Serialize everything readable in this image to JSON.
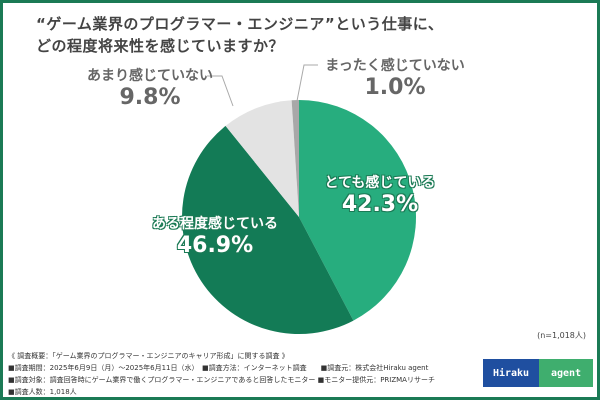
{
  "title_line1": "“ゲーム業界のプログラマー・エンジニア”という仕事に、",
  "title_line2": "どの程度将来性を感じていますか？",
  "chart_data": {
    "type": "pie",
    "start": "top",
    "direction": "clockwise",
    "slices": [
      {
        "label": "とても感じている",
        "value": 42.3,
        "display": "42.3%",
        "color": "#27ad7e"
      },
      {
        "label": "ある程度感じている",
        "value": 46.9,
        "display": "46.9%",
        "color": "#137b56"
      },
      {
        "label": "あまり感じていない",
        "value": 9.8,
        "display": "9.8%",
        "color": "#e3e3e3"
      },
      {
        "label": "まったく感じていない",
        "value": 1.0,
        "display": "1.0%",
        "color": "#a8a8a8"
      }
    ]
  },
  "sample_note": "(n=1,018人)",
  "footer": {
    "heading": "《 調査概要：「ゲーム業界のプログラマー・エンジニアのキャリア形成」に関する調査 》",
    "period": "■調査期間：2025年6月9日（月）～2025年6月11日（水）",
    "method": "■調査方法：インターネット調査",
    "source": "■調査元：株式会社Hiraku agent",
    "target": "■調査対象：調査回答時にゲーム業界で働くプログラマー・エンジニアであると回答したモニター",
    "provider": "■モニター提供元：PRIZMAリサーチ",
    "count": "■調査人数：1,018人"
  },
  "logo": {
    "part1": "Hiraku",
    "part2": "agent"
  }
}
